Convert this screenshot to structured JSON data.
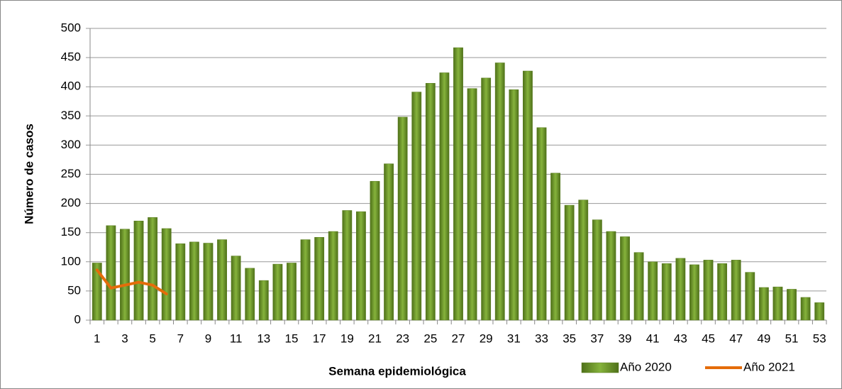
{
  "chart_data": {
    "type": "bar",
    "x_label": "Semana epidemiológica",
    "y_label": "Número de casos",
    "categories": [
      "1",
      null,
      "3",
      null,
      "5",
      null,
      "7",
      null,
      "9",
      null,
      "11",
      null,
      "13",
      null,
      "15",
      null,
      "17",
      null,
      "19",
      null,
      "21",
      null,
      "23",
      null,
      "25",
      null,
      "27",
      null,
      "29",
      null,
      "31",
      null,
      "33",
      null,
      "35",
      null,
      "37",
      null,
      "39",
      null,
      "41",
      null,
      "43",
      null,
      "45",
      null,
      "47",
      null,
      "49",
      null,
      "51",
      null,
      "53"
    ],
    "series": [
      {
        "name": "Año 2020",
        "type": "bar",
        "color": "#6e9a2a",
        "values": [
          98,
          162,
          156,
          170,
          176,
          157,
          131,
          134,
          132,
          138,
          110,
          89,
          68,
          96,
          98,
          138,
          142,
          152,
          188,
          186,
          238,
          268,
          348,
          391,
          406,
          424,
          467,
          397,
          415,
          441,
          395,
          427,
          330,
          252,
          197,
          206,
          172,
          152,
          143,
          116,
          100,
          97,
          106,
          95,
          103,
          97,
          103,
          82,
          56,
          57,
          53,
          39,
          30
        ]
      },
      {
        "name": "Año 2021",
        "type": "line",
        "color": "#e46c0a",
        "values": [
          86,
          55,
          60,
          65,
          60,
          45,
          null,
          null,
          null,
          null,
          null,
          null,
          null,
          null,
          null,
          null,
          null,
          null,
          null,
          null,
          null,
          null,
          null,
          null,
          null,
          null,
          null,
          null,
          null,
          null,
          null,
          null,
          null,
          null,
          null,
          null,
          null,
          null,
          null,
          null,
          null,
          null,
          null,
          null,
          null,
          null,
          null,
          null,
          null,
          null,
          null,
          null,
          null
        ]
      }
    ],
    "ylim": [
      0,
      500
    ],
    "yticks": [
      0,
      50,
      100,
      150,
      200,
      250,
      300,
      350,
      400,
      450,
      500
    ],
    "grid": true,
    "legend": "bottom-right"
  }
}
